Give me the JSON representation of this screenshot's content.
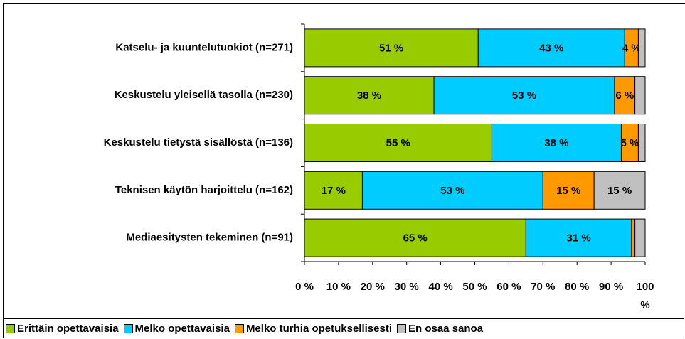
{
  "chart_data": {
    "type": "stacked-bar-horizontal",
    "categories": [
      "Katselu- ja kuuntelutuokiot (n=271)",
      "Keskustelu yleisellä tasolla (n=230)",
      "Keskustelu tietystä sisällöstä (n=136)",
      "Teknisen käytön harjoittelu (n=162)",
      "Mediaesitysten tekeminen (n=91)"
    ],
    "series": [
      {
        "name": "Erittäin opettavaisia",
        "color": "#99cc00",
        "values": [
          51,
          38,
          55,
          17,
          65
        ],
        "value_labels": [
          "51 %",
          "38 %",
          "55 %",
          "17 %",
          "65 %"
        ]
      },
      {
        "name": "Melko opettavaisia",
        "color": "#00ccff",
        "values": [
          43,
          53,
          38,
          53,
          31
        ],
        "value_labels": [
          "43 %",
          "53 %",
          "38 %",
          "53 %",
          "31 %"
        ]
      },
      {
        "name": "Melko turhia opetuksellisesti",
        "color": "#ff9900",
        "values": [
          4,
          6,
          5,
          15,
          1
        ],
        "value_labels": [
          "4 %",
          "6 %",
          "5 %",
          "15 %",
          null
        ]
      },
      {
        "name": "En osaa sanoa",
        "color": "#c0c0c0",
        "values": [
          2,
          3,
          2,
          15,
          3
        ],
        "value_labels": [
          null,
          null,
          null,
          "15 %",
          null
        ]
      }
    ],
    "xlim": [
      0,
      100
    ],
    "xticks": [
      {
        "value": 0,
        "label": "0 %"
      },
      {
        "value": 10,
        "label": "10 %"
      },
      {
        "value": 20,
        "label": "20 %"
      },
      {
        "value": 30,
        "label": "30 %"
      },
      {
        "value": 40,
        "label": "40 %"
      },
      {
        "value": 50,
        "label": "50 %"
      },
      {
        "value": 60,
        "label": "60 %"
      },
      {
        "value": 70,
        "label": "70 %"
      },
      {
        "value": 80,
        "label": "80 %"
      },
      {
        "value": 90,
        "label": "90 %"
      },
      {
        "value": 100,
        "label": "100 %"
      }
    ],
    "legend": "bottom"
  }
}
